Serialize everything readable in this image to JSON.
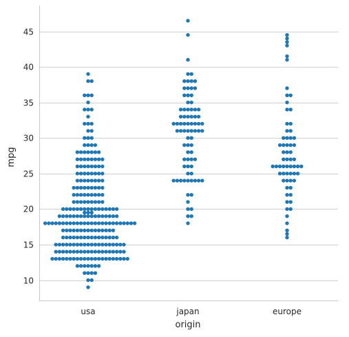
{
  "chart_data": {
    "type": "scatter",
    "subtype": "swarm",
    "xlabel": "origin",
    "ylabel": "mpg",
    "categories": [
      "usa",
      "japan",
      "europe"
    ],
    "ylim": [
      7,
      48.5
    ],
    "yticks": [
      10,
      15,
      20,
      25,
      30,
      35,
      40,
      45
    ],
    "ygrid": true,
    "marker_color": "#1f77b4",
    "series": [
      {
        "category": "usa",
        "values": [
          9,
          10,
          10,
          11,
          11,
          11,
          11,
          12,
          12,
          12,
          12,
          12,
          12,
          12,
          13,
          13,
          13,
          13,
          13,
          13,
          13,
          13,
          13,
          13,
          13,
          13,
          13,
          13,
          13,
          13,
          13,
          13,
          13,
          13,
          13,
          13,
          14,
          14,
          14,
          14,
          14,
          14,
          14,
          14,
          14,
          14,
          14,
          14,
          14,
          14,
          14,
          14,
          14,
          14,
          14,
          14,
          15,
          15,
          15,
          15,
          15,
          15,
          15,
          15,
          15,
          15,
          15,
          15,
          15,
          15,
          15,
          15,
          15,
          15,
          15,
          15,
          16,
          16,
          16,
          16,
          16,
          16,
          16,
          16,
          16,
          16,
          16,
          16,
          16,
          16,
          16,
          16,
          17,
          17,
          17,
          17,
          17,
          17,
          17,
          17,
          17,
          17,
          17,
          17,
          17,
          17,
          17,
          18,
          18,
          18,
          18,
          18,
          18,
          18,
          18,
          18,
          18,
          18,
          18,
          18,
          18,
          18,
          18,
          18,
          18,
          18,
          18,
          18,
          18,
          18,
          18,
          18,
          18,
          19,
          19,
          19,
          19,
          19,
          19,
          19,
          19,
          19,
          19,
          19,
          19,
          19,
          19,
          19,
          19,
          19,
          19.5,
          19.5,
          19.5,
          20,
          20,
          20,
          20,
          20,
          20,
          20,
          20,
          20,
          20,
          20,
          20,
          20,
          20,
          20,
          20,
          21,
          21,
          21,
          21,
          21,
          21,
          21,
          21,
          21,
          22,
          22,
          22,
          22,
          22,
          22,
          22,
          22,
          22,
          23,
          23,
          23,
          23,
          23,
          23,
          23,
          23,
          23,
          24,
          24,
          24,
          24,
          24,
          24,
          24,
          24,
          25,
          25,
          25,
          25,
          25,
          25,
          25,
          25,
          26,
          26,
          26,
          26,
          26,
          26,
          26,
          26,
          27,
          27,
          27,
          27,
          27,
          27,
          27,
          27,
          28,
          28,
          28,
          28,
          28,
          28,
          28,
          29,
          29,
          29,
          29,
          30,
          30,
          30,
          31,
          31,
          32,
          32,
          32,
          33,
          34,
          34,
          34,
          35,
          36,
          36,
          36,
          38,
          38,
          39
        ]
      },
      {
        "category": "japan",
        "values": [
          18,
          19,
          19,
          20,
          20,
          21,
          22,
          22,
          24,
          24,
          24,
          24,
          24,
          24,
          24,
          24,
          24,
          25,
          25,
          26,
          26,
          26,
          27,
          27,
          27,
          27,
          28,
          28,
          29,
          29,
          29,
          30,
          30,
          31,
          31,
          31,
          31,
          31,
          31,
          31,
          31,
          32,
          32,
          32,
          32,
          32,
          32,
          32,
          32,
          32,
          33,
          33,
          33,
          33,
          33,
          33,
          34,
          34,
          34,
          34,
          34,
          34,
          35,
          35,
          36,
          36,
          36,
          37,
          37,
          37,
          37,
          38,
          38,
          38,
          38,
          39,
          39,
          41,
          44.5,
          46.5
        ]
      },
      {
        "category": "europe",
        "values": [
          16,
          16.5,
          17,
          18,
          19,
          20,
          20,
          21,
          21,
          22,
          22,
          23,
          23,
          24,
          24,
          24,
          24,
          25,
          25,
          25,
          25,
          25,
          25,
          26,
          26,
          26,
          26,
          26,
          26,
          26,
          26,
          26,
          27,
          27,
          27,
          27,
          28,
          28,
          28,
          29,
          29,
          29,
          29,
          29,
          30,
          30,
          30,
          30,
          31,
          31,
          32,
          32,
          34,
          34,
          35,
          36,
          36,
          37,
          41,
          41.5,
          43,
          43.5,
          44,
          44.5
        ]
      }
    ]
  }
}
